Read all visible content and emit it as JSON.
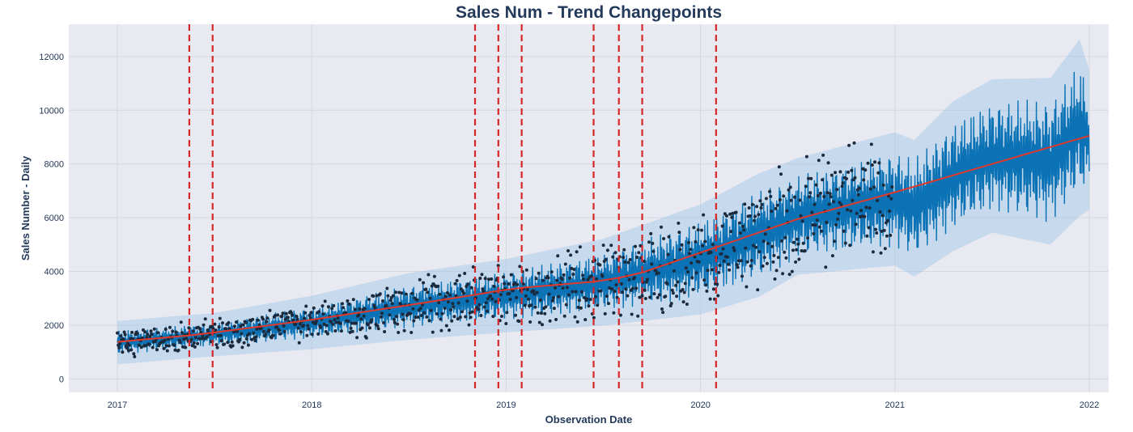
{
  "chart_data": {
    "type": "line",
    "title": "Sales Num - Trend Changepoints",
    "xlabel": "Observation Date",
    "ylabel": "Sales Number - Daily",
    "x_range": [
      2016.75,
      2022.1
    ],
    "ylim": [
      -500,
      13200
    ],
    "x_ticks": [
      {
        "value": 2017,
        "label": "2017"
      },
      {
        "value": 2018,
        "label": "2018"
      },
      {
        "value": 2019,
        "label": "2019"
      },
      {
        "value": 2020,
        "label": "2020"
      },
      {
        "value": 2021,
        "label": "2021"
      },
      {
        "value": 2022,
        "label": "2022"
      }
    ],
    "y_ticks": [
      {
        "value": 0,
        "label": "0"
      },
      {
        "value": 2000,
        "label": "2000"
      },
      {
        "value": 4000,
        "label": "4000"
      },
      {
        "value": 6000,
        "label": "6000"
      },
      {
        "value": 8000,
        "label": "8000"
      },
      {
        "value": 10000,
        "label": "10000"
      },
      {
        "value": 12000,
        "label": "12000"
      }
    ],
    "grid": true,
    "colors": {
      "plot_background": "#e9e9f2",
      "grid": "#d6d7e0",
      "forecast": "#0a72b5",
      "uncertainty_band": "#9ec5e4",
      "observed_points": "#1b2a3c",
      "trend": "#e0392b",
      "changepoint": "#d62728"
    },
    "trend": {
      "name": "trend",
      "x": [
        2017.0,
        2017.37,
        2017.49,
        2018.0,
        2018.5,
        2018.84,
        2018.96,
        2019.08,
        2019.45,
        2019.58,
        2019.7,
        2020.08,
        2020.5,
        2021.0,
        2021.5,
        2022.0
      ],
      "values": [
        1380,
        1620,
        1720,
        2200,
        2750,
        3130,
        3280,
        3390,
        3620,
        3760,
        3960,
        4900,
        5950,
        6950,
        8000,
        9050
      ]
    },
    "forecast_envelope": {
      "x": [
        2017.0,
        2017.5,
        2018.0,
        2018.5,
        2019.0,
        2019.5,
        2020.0,
        2020.3,
        2020.5,
        2021.0,
        2021.1,
        2021.3,
        2021.5,
        2021.8,
        2021.95,
        2022.0
      ],
      "lower": [
        900,
        1200,
        1500,
        1900,
        2200,
        2500,
        3000,
        3700,
        4500,
        4900,
        4500,
        5500,
        6200,
        5800,
        6900,
        7000
      ],
      "upper": [
        1800,
        2100,
        2700,
        3500,
        4000,
        4700,
        5900,
        7000,
        7600,
        8500,
        8200,
        9600,
        10400,
        10400,
        11800,
        10800
      ]
    },
    "changepoints": [
      2017.37,
      2017.49,
      2018.84,
      2018.96,
      2019.08,
      2019.45,
      2019.58,
      2019.7,
      2020.08
    ]
  }
}
